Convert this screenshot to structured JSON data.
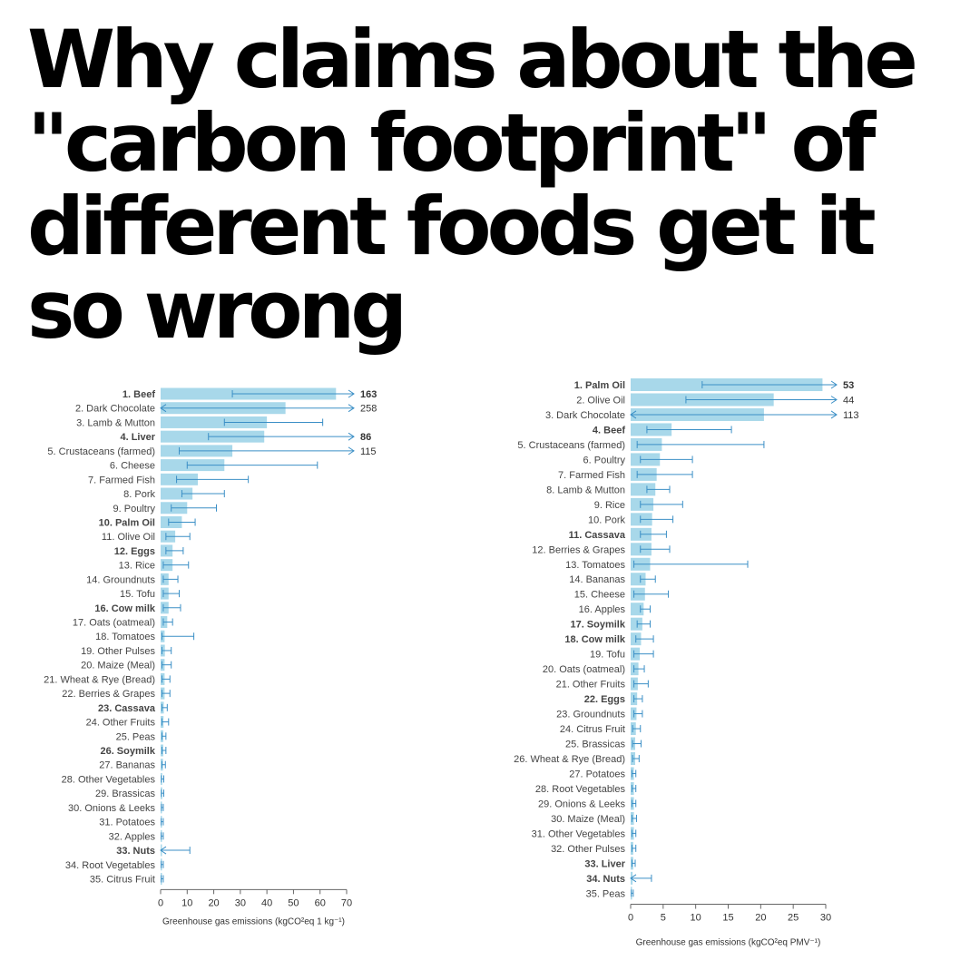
{
  "headline": {
    "lines": [
      "Why claims about the",
      "\"carbon footprint\" of",
      "different foods get it",
      "so wrong"
    ]
  },
  "colors": {
    "bar": "#a8d8ea",
    "error": "#3b8fc6",
    "beef": "#3b8fc6",
    "palm_oil": "#f5a23a",
    "eggs_liver": "#3a9a45",
    "cow_milk": "#6e2a6e",
    "cassava": "#1c2f5c",
    "soymilk": "#a8a86a",
    "nuts": "#e4572e"
  },
  "chart_data": [
    {
      "type": "bar",
      "orientation": "horizontal",
      "xlabel": "Greenhouse gas emissions (kgCO²eq 1 kg⁻¹)",
      "xlim": [
        0,
        70
      ],
      "xticks": [
        0,
        10,
        20,
        30,
        40,
        50,
        60,
        70
      ],
      "categories": [
        "1. Beef",
        "2. Dark Chocolate",
        "3. Lamb & Mutton",
        "4. Liver",
        "5. Crustaceans (farmed)",
        "6. Cheese",
        "7. Farmed Fish",
        "8. Pork",
        "9. Poultry",
        "10. Palm Oil",
        "11. Olive Oil",
        "12. Eggs",
        "13. Rice",
        "14. Groundnuts",
        "15. Tofu",
        "16. Cow milk",
        "17. Oats (oatmeal)",
        "18. Tomatoes",
        "19. Other Pulses",
        "20. Maize (Meal)",
        "21. Wheat & Rye (Bread)",
        "22. Berries & Grapes",
        "23. Cassava",
        "24. Other Fruits",
        "25. Peas",
        "26. Soymilk",
        "27. Bananas",
        "28. Other Vegetables",
        "29. Brassicas",
        "30. Onions & Leeks",
        "31. Potatoes",
        "32. Apples",
        "33. Nuts",
        "34. Root Vegetables",
        "35. Citrus Fruit"
      ],
      "values": [
        66,
        47,
        40,
        39,
        27,
        24,
        14,
        12,
        10,
        8,
        5.5,
        4.5,
        4.5,
        3,
        3,
        3,
        2.5,
        1.5,
        1.6,
        1.5,
        1.5,
        1.5,
        1.2,
        1.1,
        1,
        1,
        0.9,
        0.6,
        0.6,
        0.5,
        0.4,
        0.4,
        0.3,
        0.4,
        0.4
      ],
      "err_low": [
        27,
        0,
        24,
        18,
        7,
        10,
        6,
        8,
        4,
        3,
        2,
        2,
        1,
        1,
        1,
        1,
        1,
        0.5,
        0.5,
        0.5,
        0.5,
        0.5,
        0.5,
        0.5,
        0.5,
        0.5,
        0.5,
        0.3,
        0.3,
        0.3,
        0.2,
        0.2,
        0,
        0.2,
        0.2
      ],
      "err_high": [
        163,
        258,
        61,
        86,
        115,
        59,
        33,
        24,
        21,
        13,
        11,
        8.5,
        10.5,
        6.5,
        7,
        7.5,
        4.5,
        12.5,
        4,
        4,
        3.5,
        3.5,
        2.5,
        3,
        2,
        2,
        1.8,
        1.2,
        1.2,
        1,
        1,
        1,
        11,
        1,
        1
      ],
      "annotations": {
        "0": "163",
        "1": "258",
        "3": "86",
        "4": "115"
      },
      "highlights": {
        "0": "beef",
        "3": "eggs_liver",
        "9": "palm_oil",
        "11": "eggs_liver",
        "15": "cow_milk",
        "22": "cassava",
        "25": "soymilk",
        "32": "nuts"
      }
    },
    {
      "type": "bar",
      "orientation": "horizontal",
      "xlabel": "Greenhouse gas emissions (kgCO²eq PMV⁻¹)",
      "xlim": [
        0,
        30
      ],
      "xticks": [
        0,
        5,
        10,
        15,
        20,
        25,
        30
      ],
      "categories": [
        "1. Palm Oil",
        "2. Olive Oil",
        "3. Dark Chocolate",
        "4. Beef",
        "5. Crustaceans (farmed)",
        "6. Poultry",
        "7. Farmed Fish",
        "8. Lamb & Mutton",
        "9. Rice",
        "10. Pork",
        "11. Cassava",
        "12. Berries & Grapes",
        "13. Tomatoes",
        "14. Bananas",
        "15. Cheese",
        "16. Apples",
        "17. Soymilk",
        "18. Cow milk",
        "19. Tofu",
        "20. Oats (oatmeal)",
        "21. Other Fruits",
        "22. Eggs",
        "23. Groundnuts",
        "24. Citrus Fruit",
        "25. Brassicas",
        "26. Wheat & Rye (Bread)",
        "27. Potatoes",
        "28. Root Vegetables",
        "29. Onions & Leeks",
        "30. Maize (Meal)",
        "31. Other Vegetables",
        "32. Other Pulses",
        "33. Liver",
        "34. Nuts",
        "35. Peas"
      ],
      "values": [
        29.5,
        22,
        20.5,
        6.3,
        4.8,
        4.5,
        4,
        3.8,
        3.5,
        3.3,
        3.2,
        3.2,
        3,
        2.3,
        2.2,
        2,
        1.8,
        1.6,
        1.4,
        1.2,
        1.1,
        1,
        0.9,
        0.8,
        0.7,
        0.7,
        0.5,
        0.5,
        0.5,
        0.5,
        0.5,
        0.4,
        0.4,
        0.3,
        0.2
      ],
      "err_low": [
        11,
        8.5,
        0,
        2.5,
        1,
        1.5,
        1,
        2.5,
        1.5,
        1.5,
        1.5,
        1.5,
        0.5,
        1.5,
        0.5,
        1.5,
        1,
        0.8,
        0.5,
        0.5,
        0.5,
        0.5,
        0.5,
        0.3,
        0.3,
        0.3,
        0.2,
        0.2,
        0.2,
        0.2,
        0.2,
        0.2,
        0.2,
        0,
        0.1
      ],
      "err_high": [
        53,
        44,
        113,
        15.5,
        20.5,
        9.5,
        9.5,
        6,
        8,
        6.5,
        5.5,
        6,
        18,
        3.8,
        5.8,
        3,
        3,
        3.5,
        3.5,
        2.1,
        2.7,
        1.8,
        1.8,
        1.5,
        1.6,
        1.3,
        0.8,
        0.8,
        0.8,
        0.9,
        0.8,
        0.8,
        0.7,
        3.2,
        0.4
      ],
      "annotations": {
        "0": "53",
        "1": "44",
        "2": "113"
      },
      "highlights": {
        "0": "palm_oil",
        "3": "beef",
        "10": "cassava",
        "16": "soymilk",
        "17": "cow_milk",
        "21": "eggs_liver",
        "32": "eggs_liver",
        "33": "nuts"
      }
    }
  ]
}
